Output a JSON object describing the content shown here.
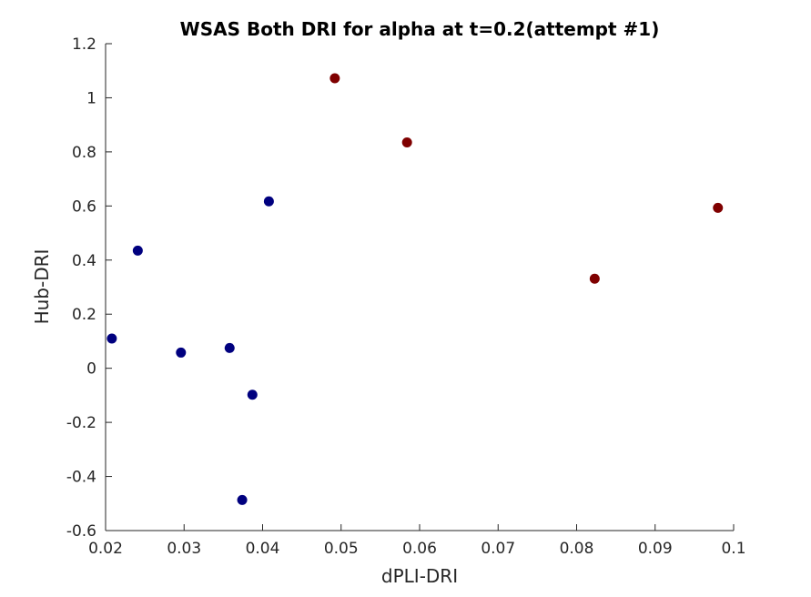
{
  "chart_data": {
    "type": "scatter",
    "title": "WSAS Both DRI for alpha at t=0.2(attempt #1)",
    "xlabel": "dPLI-DRI",
    "ylabel": "Hub-DRI",
    "xlim": [
      0.02,
      0.1
    ],
    "ylim": [
      -0.6,
      1.2
    ],
    "xticks": [
      "0.02",
      "0.03",
      "0.04",
      "0.05",
      "0.06",
      "0.07",
      "0.08",
      "0.09",
      "0.1"
    ],
    "yticks": [
      "-0.6",
      "-0.4",
      "-0.2",
      "0",
      "0.2",
      "0.4",
      "0.6",
      "0.8",
      "1",
      "1.2"
    ],
    "grid": false,
    "series": [
      {
        "color": "#00007f",
        "points": [
          {
            "x": 0.0208,
            "y": 0.11
          },
          {
            "x": 0.0241,
            "y": 0.435
          },
          {
            "x": 0.0296,
            "y": 0.058
          },
          {
            "x": 0.0358,
            "y": 0.075
          },
          {
            "x": 0.0374,
            "y": -0.487
          },
          {
            "x": 0.0387,
            "y": -0.098
          },
          {
            "x": 0.0408,
            "y": 0.617
          }
        ]
      },
      {
        "color": "#7f0000",
        "points": [
          {
            "x": 0.0492,
            "y": 1.072
          },
          {
            "x": 0.0584,
            "y": 0.835
          },
          {
            "x": 0.0823,
            "y": 0.331
          },
          {
            "x": 0.098,
            "y": 0.593
          }
        ]
      }
    ]
  }
}
